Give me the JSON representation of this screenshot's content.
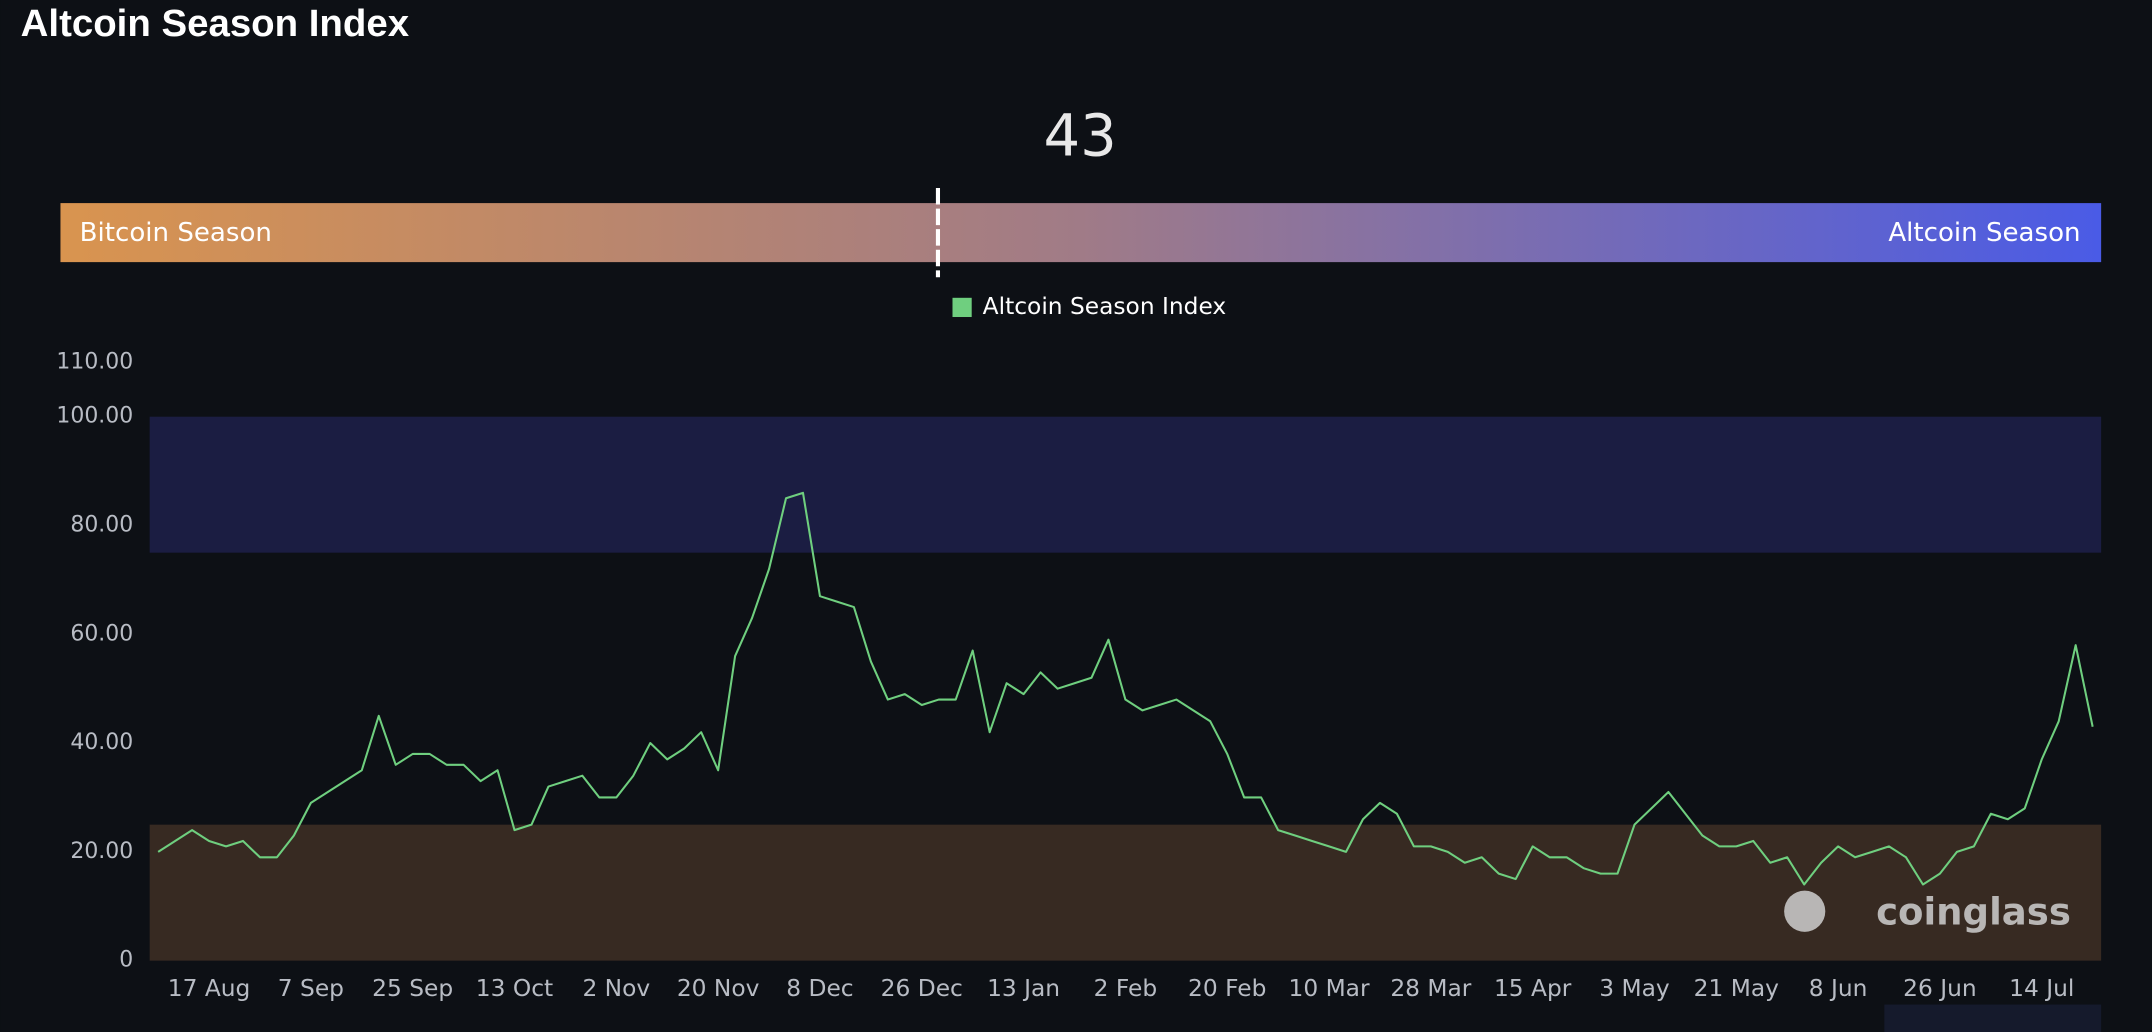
{
  "chart_data": {
    "type": "line",
    "title": "Altcoin Season Index",
    "value": 43,
    "gauge_lim": [
      0,
      100
    ],
    "gauge_labels": [
      "Bitcoin Season",
      "Altcoin Season"
    ],
    "gauge_colors": [
      "#d9944f",
      "#a07b87",
      "#4a5be6"
    ],
    "watermark": "coinglass",
    "categories": [
      null,
      null,
      null,
      "17 Aug",
      null,
      null,
      null,
      null,
      null,
      "7 Sep",
      null,
      null,
      null,
      null,
      null,
      "25 Sep",
      null,
      null,
      null,
      null,
      null,
      "13 Oct",
      null,
      null,
      null,
      null,
      null,
      "2 Nov",
      null,
      null,
      null,
      null,
      null,
      "20 Nov",
      null,
      null,
      null,
      null,
      null,
      "8 Dec",
      null,
      null,
      null,
      null,
      null,
      "26 Dec",
      null,
      null,
      null,
      null,
      null,
      "13 Jan",
      null,
      null,
      null,
      null,
      null,
      "2 Feb",
      null,
      null,
      null,
      null,
      null,
      "20 Feb",
      null,
      null,
      null,
      null,
      null,
      "10 Mar",
      null,
      null,
      null,
      null,
      null,
      "28 Mar",
      null,
      null,
      null,
      null,
      null,
      "15 Apr",
      null,
      null,
      null,
      null,
      null,
      "3 May",
      null,
      null,
      null,
      null,
      null,
      "21 May",
      null,
      null,
      null,
      null,
      null,
      "8 Jun",
      null,
      null,
      null,
      null,
      null,
      "26 Jun",
      null,
      null,
      null,
      null,
      null,
      "14 Jul",
      null,
      null,
      null
    ],
    "series": [
      {
        "name": "Altcoin Season Index",
        "color": "#6fcf7f",
        "values": [
          20,
          22,
          24,
          22,
          21,
          22,
          19,
          19,
          23,
          29,
          31,
          33,
          35,
          45,
          36,
          38,
          38,
          36,
          36,
          33,
          35,
          24,
          25,
          32,
          33,
          34,
          30,
          30,
          34,
          40,
          37,
          39,
          42,
          35,
          56,
          63,
          72,
          85,
          86,
          67,
          66,
          65,
          55,
          48,
          49,
          47,
          48,
          48,
          57,
          42,
          51,
          49,
          53,
          50,
          51,
          52,
          59,
          48,
          46,
          47,
          48,
          46,
          44,
          38,
          30,
          30,
          24,
          23,
          22,
          21,
          20,
          26,
          29,
          27,
          21,
          21,
          20,
          18,
          19,
          16,
          15,
          21,
          19,
          19,
          17,
          16,
          16,
          25,
          28,
          31,
          27,
          23,
          21,
          21,
          22,
          18,
          19,
          14,
          18,
          21,
          19,
          20,
          21,
          19,
          14,
          16,
          20,
          21,
          27,
          26,
          28,
          37,
          44,
          58,
          43
        ]
      }
    ],
    "bands": [
      {
        "from": 75,
        "to": 100,
        "color": "#1b1d42"
      },
      {
        "from": 0,
        "to": 25,
        "color": "#372a22"
      }
    ],
    "ylim": [
      0,
      110
    ],
    "yticks": [
      0,
      {
        "value": 20,
        "label": "20.00"
      },
      {
        "value": 40,
        "label": "40.00"
      },
      {
        "value": 60,
        "label": "60.00"
      },
      {
        "value": 80,
        "label": "80.00"
      },
      {
        "value": 100,
        "label": "100.00"
      },
      {
        "value": 110,
        "label": "110.00"
      }
    ]
  }
}
